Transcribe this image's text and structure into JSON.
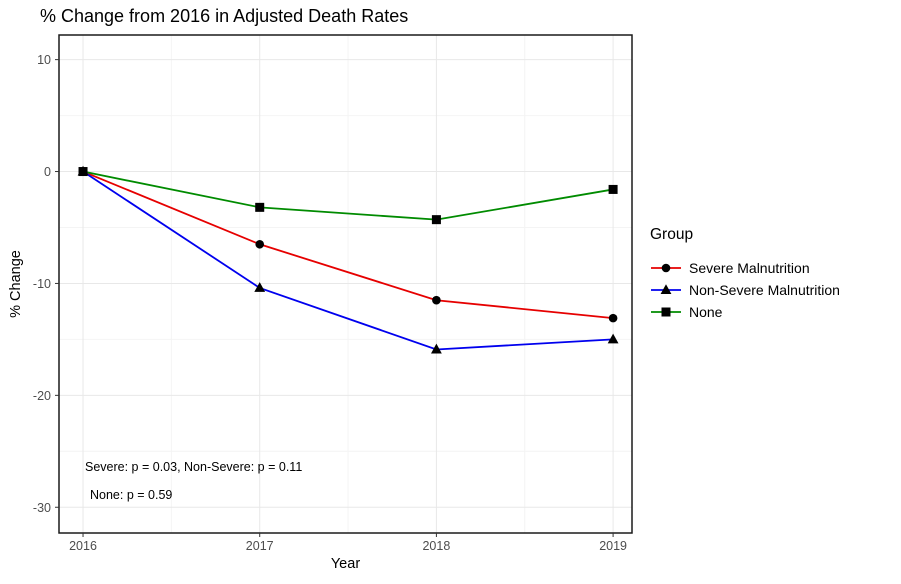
{
  "chart_data": {
    "type": "line",
    "title": "% Change from 2016 in Adjusted Death Rates",
    "xlabel": "Year",
    "ylabel": "% Change",
    "x": [
      2016,
      2017,
      2018,
      2019
    ],
    "x_tick_labels": [
      "2016",
      "2017",
      "2018",
      "2019"
    ],
    "x_minor_ticks": [
      2016.5,
      2017.5,
      2018.5
    ],
    "y_ticks": [
      10,
      0,
      -10,
      -20,
      -30
    ],
    "y_tick_labels": [
      "10",
      "0",
      "-10",
      "-20",
      "-30"
    ],
    "y_minor_ticks": [
      5,
      -5,
      -15,
      -25
    ],
    "xlim": [
      2015.864,
      2019.107
    ],
    "ylim": [
      -32.3,
      12.2
    ],
    "grid": "major-and-minor",
    "legend_position": "right",
    "legend_title": "Group",
    "series": [
      {
        "name": "Severe Malnutrition",
        "color": "#e60000",
        "marker": "circle",
        "marker_color": "#000000",
        "values": [
          0,
          -6.5,
          -11.5,
          -13.1
        ]
      },
      {
        "name": "Non-Severe Malnutrition",
        "color": "#0000ee",
        "marker": "triangle",
        "marker_color": "#000000",
        "values": [
          0,
          -10.4,
          -15.9,
          -15.0
        ]
      },
      {
        "name": "None",
        "color": "#008b00",
        "marker": "square",
        "marker_color": "#000000",
        "values": [
          0,
          -3.2,
          -4.3,
          -1.6
        ]
      }
    ],
    "annotations": [
      "Severe: p = 0.03, Non-Severe: p = 0.11",
      "None: p = 0.59"
    ],
    "colors": {
      "panel_border": "#1a1a1a",
      "grid_major": "#e8e8e8",
      "grid_minor": "#f4f4f4",
      "tick_mark": "#333333",
      "tick_label": "#4d4d4d"
    }
  }
}
